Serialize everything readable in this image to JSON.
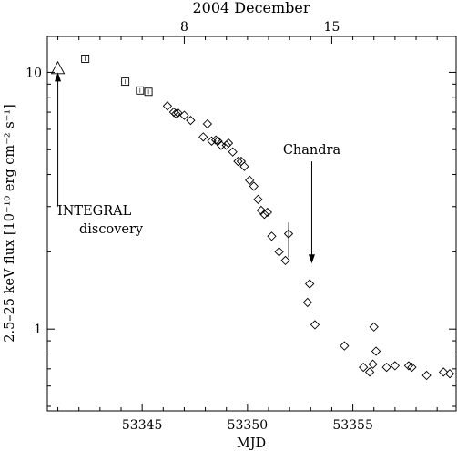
{
  "chart_data": {
    "type": "scatter",
    "title": "2004 December",
    "xlabel": "MJD",
    "ylabel": "2.5–25 keV flux [10⁻¹⁰ erg cm⁻² s⁻¹]",
    "yscale": "log",
    "xlim": [
      53340.5,
      53359.9
    ],
    "ylim": [
      0.48,
      13.8
    ],
    "x_ticks": [
      53345,
      53350,
      53355
    ],
    "x_tick_labels": [
      "53345",
      "53350",
      "53355"
    ],
    "y_ticks": [
      1,
      10
    ],
    "y_tick_labels": [
      "1",
      "10"
    ],
    "top_axis": {
      "label": "2004 December",
      "ticks": [
        {
          "mjd": 53347.0,
          "label": "8"
        },
        {
          "mjd": 53354.0,
          "label": "15"
        }
      ]
    },
    "grid": false,
    "series": [
      {
        "marker": "triangle",
        "points": [
          [
            53341.0,
            10.3
          ]
        ]
      },
      {
        "marker": "square",
        "points": [
          [
            53342.3,
            11.3
          ],
          [
            53344.2,
            9.2
          ],
          [
            53344.9,
            8.5
          ],
          [
            53345.3,
            8.4
          ]
        ]
      },
      {
        "marker": "diamond",
        "points": [
          [
            53346.2,
            7.4
          ],
          [
            53346.5,
            7.0
          ],
          [
            53346.6,
            6.9
          ],
          [
            53346.7,
            6.95
          ],
          [
            53347.0,
            6.8
          ],
          [
            53347.3,
            6.5
          ],
          [
            53347.9,
            5.6
          ],
          [
            53348.1,
            6.3
          ],
          [
            53348.3,
            5.4
          ],
          [
            53348.5,
            5.45
          ],
          [
            53348.6,
            5.4
          ],
          [
            53348.75,
            5.2
          ],
          [
            53349.0,
            5.2
          ],
          [
            53349.1,
            5.3
          ],
          [
            53349.3,
            4.9
          ],
          [
            53349.55,
            4.5
          ],
          [
            53349.7,
            4.5
          ],
          [
            53349.85,
            4.3
          ],
          [
            53350.1,
            3.8
          ],
          [
            53350.3,
            3.6
          ],
          [
            53350.5,
            3.2
          ],
          [
            53350.65,
            2.9
          ],
          [
            53350.8,
            2.8
          ],
          [
            53350.95,
            2.85
          ],
          [
            53351.15,
            2.3
          ],
          [
            53351.5,
            2.0
          ],
          [
            53351.8,
            1.85
          ],
          [
            53351.95,
            2.35
          ],
          [
            53352.95,
            1.5
          ],
          [
            53352.85,
            1.27
          ],
          [
            53353.2,
            1.04
          ],
          [
            53354.6,
            0.86
          ],
          [
            53355.5,
            0.71
          ],
          [
            53355.8,
            0.68
          ],
          [
            53355.95,
            0.73
          ],
          [
            53356.0,
            1.02
          ],
          [
            53356.1,
            0.82
          ],
          [
            53356.6,
            0.71
          ],
          [
            53357.0,
            0.72
          ],
          [
            53357.65,
            0.72
          ],
          [
            53357.8,
            0.71
          ],
          [
            53358.5,
            0.66
          ],
          [
            53359.3,
            0.68
          ],
          [
            53359.6,
            0.67
          ]
        ]
      }
    ],
    "annotations": [
      {
        "text": "INTEGRAL",
        "line2": "discovery",
        "arrow_from_mjd": 53341.0,
        "arrow_from_flux": 3.0,
        "arrow_to_flux": 10.0
      },
      {
        "text": "Chandra",
        "arrow_x": 53353.05,
        "arrow_from_flux": 4.5,
        "arrow_to_flux": 1.8
      }
    ]
  }
}
